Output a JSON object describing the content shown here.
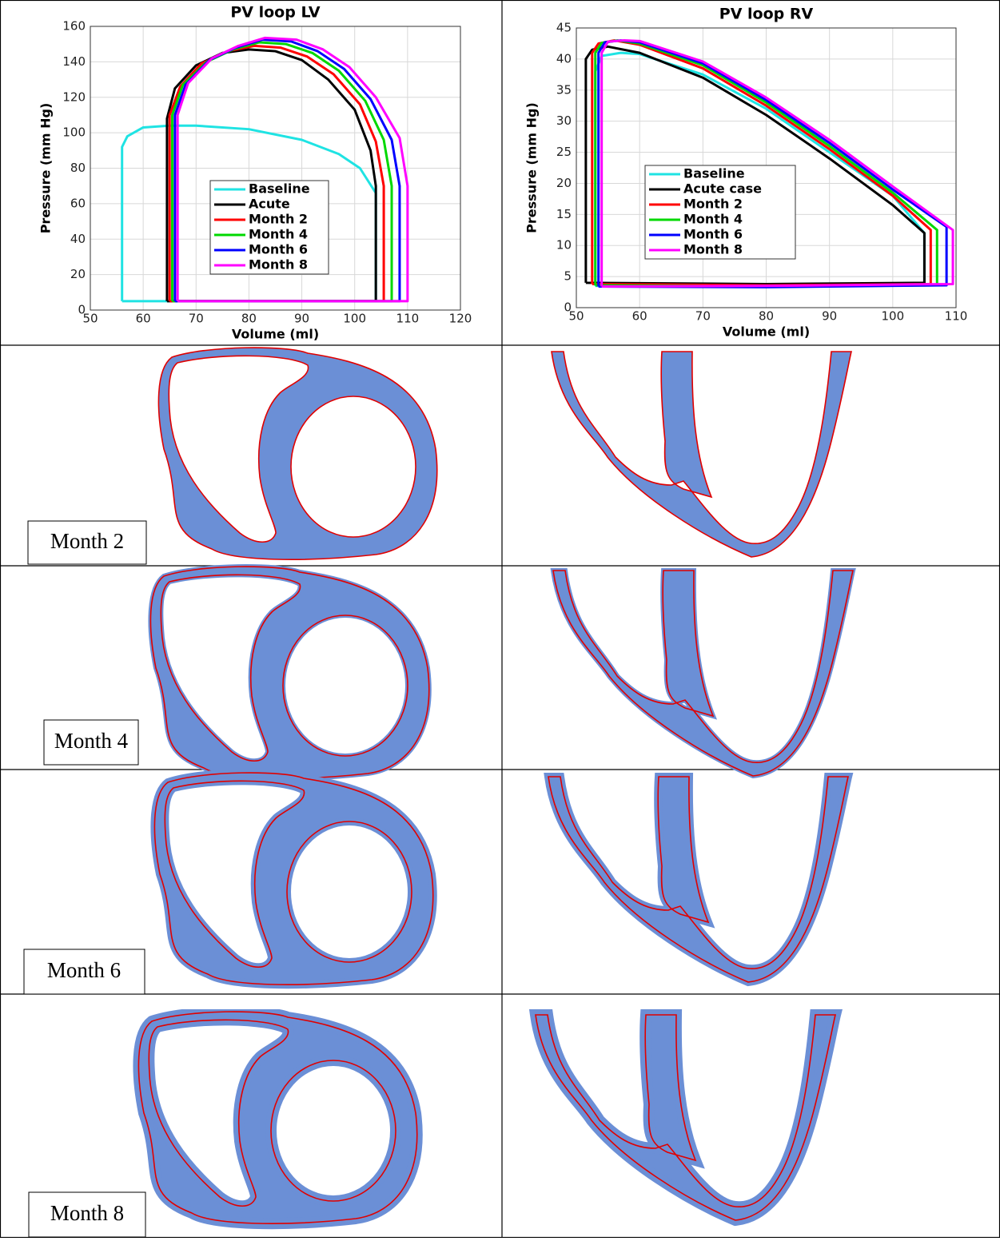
{
  "chart_data": [
    {
      "type": "line",
      "title": "PV loop LV",
      "xlabel": "Volume (ml)",
      "ylabel": "Pressure (mm Hg)",
      "xlim": [
        50,
        120
      ],
      "xticks": [
        50,
        60,
        70,
        80,
        90,
        100,
        110,
        120
      ],
      "ylim": [
        0,
        160
      ],
      "yticks": [
        0,
        20,
        40,
        60,
        80,
        100,
        120,
        140,
        160
      ],
      "grid": true,
      "legend": "lower center",
      "series": [
        {
          "name": "Baseline",
          "color": "#1fe3e3",
          "x": [
            56,
            56,
            57,
            60,
            65,
            70,
            80,
            90,
            97,
            101,
            104,
            104,
            80,
            56
          ],
          "values": [
            5,
            92,
            98,
            103,
            104,
            104,
            102,
            96,
            88,
            80,
            66,
            5,
            5,
            5
          ]
        },
        {
          "name": "Acute",
          "color": "#000000",
          "x": [
            64.5,
            64.5,
            66,
            70,
            75,
            80,
            85,
            90,
            95,
            100,
            103,
            104,
            104,
            85,
            64.5
          ],
          "values": [
            5,
            108,
            125,
            138,
            145,
            147,
            146,
            141,
            130,
            113,
            90,
            70,
            5,
            5,
            5
          ]
        },
        {
          "name": "Month 2",
          "color": "#ff0000",
          "x": [
            65,
            65,
            67,
            71,
            76,
            81,
            86,
            91,
            96,
            101,
            104,
            105.5,
            105.5,
            85,
            65
          ],
          "values": [
            5,
            110,
            126,
            139,
            146,
            149,
            148,
            143,
            133,
            116,
            95,
            70,
            5,
            5,
            5
          ]
        },
        {
          "name": "Month 4",
          "color": "#00d800",
          "x": [
            65.5,
            65.5,
            67.5,
            72,
            77,
            82,
            87,
            92,
            97,
            102,
            105.5,
            107,
            107,
            85,
            65.5
          ],
          "values": [
            5,
            110,
            127,
            140,
            147,
            151,
            150,
            145,
            135,
            118,
            96,
            70,
            5,
            5,
            5
          ]
        },
        {
          "name": "Month 6",
          "color": "#0000ff",
          "x": [
            66,
            66,
            68,
            72.5,
            77.5,
            82.5,
            88,
            93,
            98,
            103,
            107,
            108.5,
            108.5,
            85,
            66
          ],
          "values": [
            5,
            110,
            127,
            141,
            148,
            152.5,
            151.5,
            146,
            136,
            119,
            96,
            70,
            5,
            5,
            5
          ]
        },
        {
          "name": "Month 8",
          "color": "#ff00ff",
          "x": [
            66.5,
            66.5,
            68.5,
            73,
            78,
            83,
            89,
            94,
            99,
            104,
            108.5,
            110,
            110,
            85,
            66.5
          ],
          "values": [
            5,
            110,
            128,
            142,
            149,
            153.5,
            152.5,
            147,
            137,
            120,
            97,
            70,
            5,
            5,
            5
          ]
        }
      ]
    },
    {
      "type": "line",
      "title": "PV loop RV",
      "xlabel": "Volume (ml)",
      "ylabel": "Pressure (mm Hg)",
      "xlim": [
        50,
        110
      ],
      "xticks": [
        50,
        60,
        70,
        80,
        90,
        100,
        110
      ],
      "ylim": [
        0,
        45
      ],
      "yticks": [
        0,
        5,
        10,
        15,
        20,
        25,
        30,
        35,
        40,
        45
      ],
      "grid": true,
      "legend": "center left",
      "series": [
        {
          "name": "Baseline",
          "color": "#1fe3e3",
          "x": [
            53,
            53,
            54,
            57,
            60,
            70,
            80,
            90,
            100,
            105,
            105,
            80,
            53
          ],
          "values": [
            3.5,
            38,
            40.5,
            41,
            40.8,
            37.5,
            32,
            25,
            18,
            12,
            4,
            3.5,
            3.5
          ]
        },
        {
          "name": "Acute case",
          "color": "#000000",
          "x": [
            51.5,
            51.5,
            52.5,
            55,
            60,
            70,
            80,
            90,
            100,
            105,
            105,
            80,
            51.5
          ],
          "values": [
            4,
            40,
            41.5,
            42,
            41,
            37,
            31,
            24,
            16.5,
            12,
            4,
            3.8,
            4
          ]
        },
        {
          "name": "Month 2",
          "color": "#ff0000",
          "x": [
            52.5,
            52.5,
            53.5,
            56,
            60,
            70,
            80,
            90,
            100,
            106,
            106,
            80,
            52.5
          ],
          "values": [
            3.8,
            41,
            42.5,
            43,
            42.3,
            38.5,
            32.5,
            25.5,
            18,
            12.5,
            3.8,
            3.6,
            3.8
          ]
        },
        {
          "name": "Month 4",
          "color": "#00d800",
          "x": [
            53,
            53,
            54,
            56.5,
            60,
            70,
            80,
            90,
            100,
            107,
            107,
            80,
            53
          ],
          "values": [
            3.6,
            41,
            42.6,
            43,
            42.5,
            39,
            33,
            26,
            18.5,
            12.5,
            3.6,
            3.4,
            3.6
          ]
        },
        {
          "name": "Month 6",
          "color": "#0000ff",
          "x": [
            53.5,
            53.5,
            54.5,
            57,
            60,
            70,
            80,
            90,
            100,
            108.5,
            108.5,
            80,
            53.5
          ],
          "values": [
            3.4,
            41,
            42.7,
            43,
            42.7,
            39.3,
            33.4,
            26.5,
            19,
            13,
            3.6,
            3.3,
            3.4
          ]
        },
        {
          "name": "Month 8",
          "color": "#ff00ff",
          "x": [
            54,
            54,
            55,
            57.5,
            60,
            70,
            80,
            90,
            100,
            109.5,
            109.5,
            80,
            54
          ],
          "values": [
            3.4,
            41,
            42.8,
            43,
            42.9,
            39.6,
            33.8,
            27,
            19.5,
            12.5,
            3.8,
            3.5,
            3.4
          ]
        }
      ]
    }
  ],
  "row_labels": [
    "Month 2",
    "Month 4",
    "Month 6",
    "Month 8"
  ]
}
